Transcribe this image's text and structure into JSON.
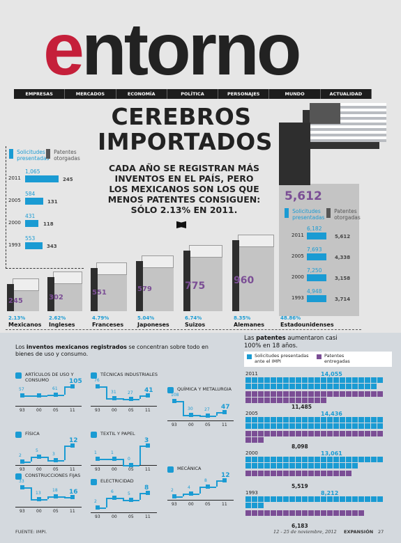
{
  "header": {
    "logo_e": "e",
    "logo_rest": "ntorno"
  },
  "nav": [
    "EMPRESAS",
    "MERCADOS",
    "ECONOMÍA",
    "POLÍTICA",
    "PERSONAJES",
    "MUNDO",
    "ACTUALIDAD"
  ],
  "article": {
    "title_line1": "CEREBROS",
    "title_line2": "IMPORTADOS",
    "subtitle": "CADA AÑO SE REGISTRAN MÁS INVENTOS EN EL PAÍS, PERO LOS MEXICANOS SON LOS QUE MENOS PATENTES CONSIGUEN: SÓLO 2.13% EN 2011."
  },
  "colors": {
    "blue": "#1a9bd3",
    "purple": "#7b4e95",
    "dark": "#1d1d1d",
    "red": "#c51f3a"
  },
  "mexico_box": {
    "legend_a": "Solicitudes presentadas",
    "legend_b": "Patentes otorgadas",
    "rows": [
      {
        "year": "2011",
        "applications": "1,065",
        "granted": "245"
      },
      {
        "year": "2005",
        "applications": "584",
        "granted": "131"
      },
      {
        "year": "2000",
        "applications": "431",
        "granted": "118"
      },
      {
        "year": "1993",
        "applications": "553",
        "granted": "343"
      }
    ]
  },
  "usa_box": {
    "total": "5,612",
    "legend_a": "Solicitudes presentadas",
    "legend_b": "Patentes otorgadas",
    "rows": [
      {
        "year": "2011",
        "applications": "6,182",
        "granted": "5,612"
      },
      {
        "year": "2005",
        "applications": "7,693",
        "granted": "4,338"
      },
      {
        "year": "2000",
        "applications": "7,250",
        "granted": "3,158"
      },
      {
        "year": "1993",
        "applications": "4,948",
        "granted": "3,714"
      }
    ]
  },
  "chart_data": [
    {
      "type": "bar",
      "title": "",
      "categories": [
        "Mexicanos",
        "Ingleses",
        "Franceses",
        "Japoneses",
        "Suizos",
        "Alemanes",
        "Estadounidenses"
      ],
      "values": [
        245,
        302,
        551,
        579,
        775,
        960,
        5612
      ],
      "percent_labels": [
        "2.13%",
        "2.62%",
        "4.79%",
        "5.04%",
        "6.74%",
        "8.35%",
        "48.86%"
      ],
      "value_labels": [
        "245",
        "302",
        "551",
        "579",
        "775",
        "960",
        "5,612"
      ]
    },
    {
      "type": "line",
      "title": "Artículos de uso y consumo",
      "x": [
        "93",
        "00",
        "05",
        "11"
      ],
      "values": [
        57,
        55,
        61,
        105
      ],
      "labels": [
        "57",
        "",
        "61",
        "105"
      ]
    },
    {
      "type": "line",
      "title": "Técnicas industriales",
      "x": [
        "93",
        "00",
        "05",
        "11"
      ],
      "values": [
        76,
        31,
        27,
        41
      ],
      "labels": [
        "76",
        "31",
        "27",
        "41"
      ]
    },
    {
      "type": "line",
      "title": "Química y metalurgia",
      "x": [
        "93",
        "00",
        "05",
        "11"
      ],
      "values": [
        108,
        30,
        27,
        47
      ],
      "labels": [
        "108",
        "30",
        "27",
        "47"
      ]
    },
    {
      "type": "line",
      "title": "Física",
      "x": [
        "93",
        "00",
        "05",
        "11"
      ],
      "values": [
        2,
        5,
        3,
        12
      ],
      "labels": [
        "2",
        "5",
        "3",
        "12"
      ]
    },
    {
      "type": "line",
      "title": "Textil y papel",
      "x": [
        "93",
        "00",
        "05",
        "11"
      ],
      "values": [
        1,
        1,
        0,
        3
      ],
      "labels": [
        "1",
        "1",
        "0",
        "3"
      ]
    },
    {
      "type": "line",
      "title": "Mecánica",
      "x": [
        "93",
        "00",
        "05",
        "11"
      ],
      "values": [
        2,
        4,
        8,
        12
      ],
      "labels": [
        "2",
        "4",
        "8",
        "12"
      ]
    },
    {
      "type": "line",
      "title": "Construcciones fijas",
      "x": [
        "93",
        "00",
        "05",
        "11"
      ],
      "values": [
        33,
        13,
        18,
        16
      ],
      "labels": [
        "33",
        "13",
        "18",
        "16"
      ]
    },
    {
      "type": "line",
      "title": "Electricidad",
      "x": [
        "93",
        "00",
        "05",
        "11"
      ],
      "values": [
        2,
        6,
        5,
        8
      ],
      "labels": [
        "2",
        "6",
        "5",
        "8"
      ]
    },
    {
      "type": "bar",
      "title": "",
      "categories": [
        "2011",
        "2005",
        "2000",
        "1993"
      ],
      "series": [
        {
          "name": "Solicitudes presentadas ante el IMPI",
          "values": [
            14055,
            14436,
            13061,
            8212
          ]
        },
        {
          "name": "Patentes entregadas",
          "values": [
            11485,
            8098,
            5519,
            6183
          ]
        }
      ],
      "value_labels_a": [
        "14,055",
        "14,436",
        "13,061",
        "8,212"
      ],
      "value_labels_b": [
        "11,485",
        "8,098",
        "5,519",
        "6,183"
      ]
    }
  ],
  "sectors": {
    "intro_plain": "Los ",
    "intro_bold": "inventos mexicanos registrados",
    "intro_rest": " se concentran sobre todo en bienes de uso y consumo.",
    "titles": [
      "ARTÍCULOS DE USO Y CONSUMO",
      "TÉCNICAS INDUSTRIALES",
      "QUÍMICA Y METALURGIA",
      "FÍSICA",
      "TEXTIL Y PAPEL",
      "MECÁNICA",
      "CONSTRUCCIONES FIJAS",
      "ELECTRICIDAD"
    ]
  },
  "patents": {
    "intro_plain": "Las ",
    "intro_bold": "patentes",
    "intro_rest": " aumentaron casi 100% en 18 años.",
    "legend_a": "Solicitudes presentadas ante el IMPI",
    "legend_b": "Patentes entregadas"
  },
  "footer": {
    "source": "FUENTE: IMPI.",
    "date": "12 - 25 de noviembre, 2012",
    "brand": "EXPANSIÓN",
    "page": "27"
  }
}
